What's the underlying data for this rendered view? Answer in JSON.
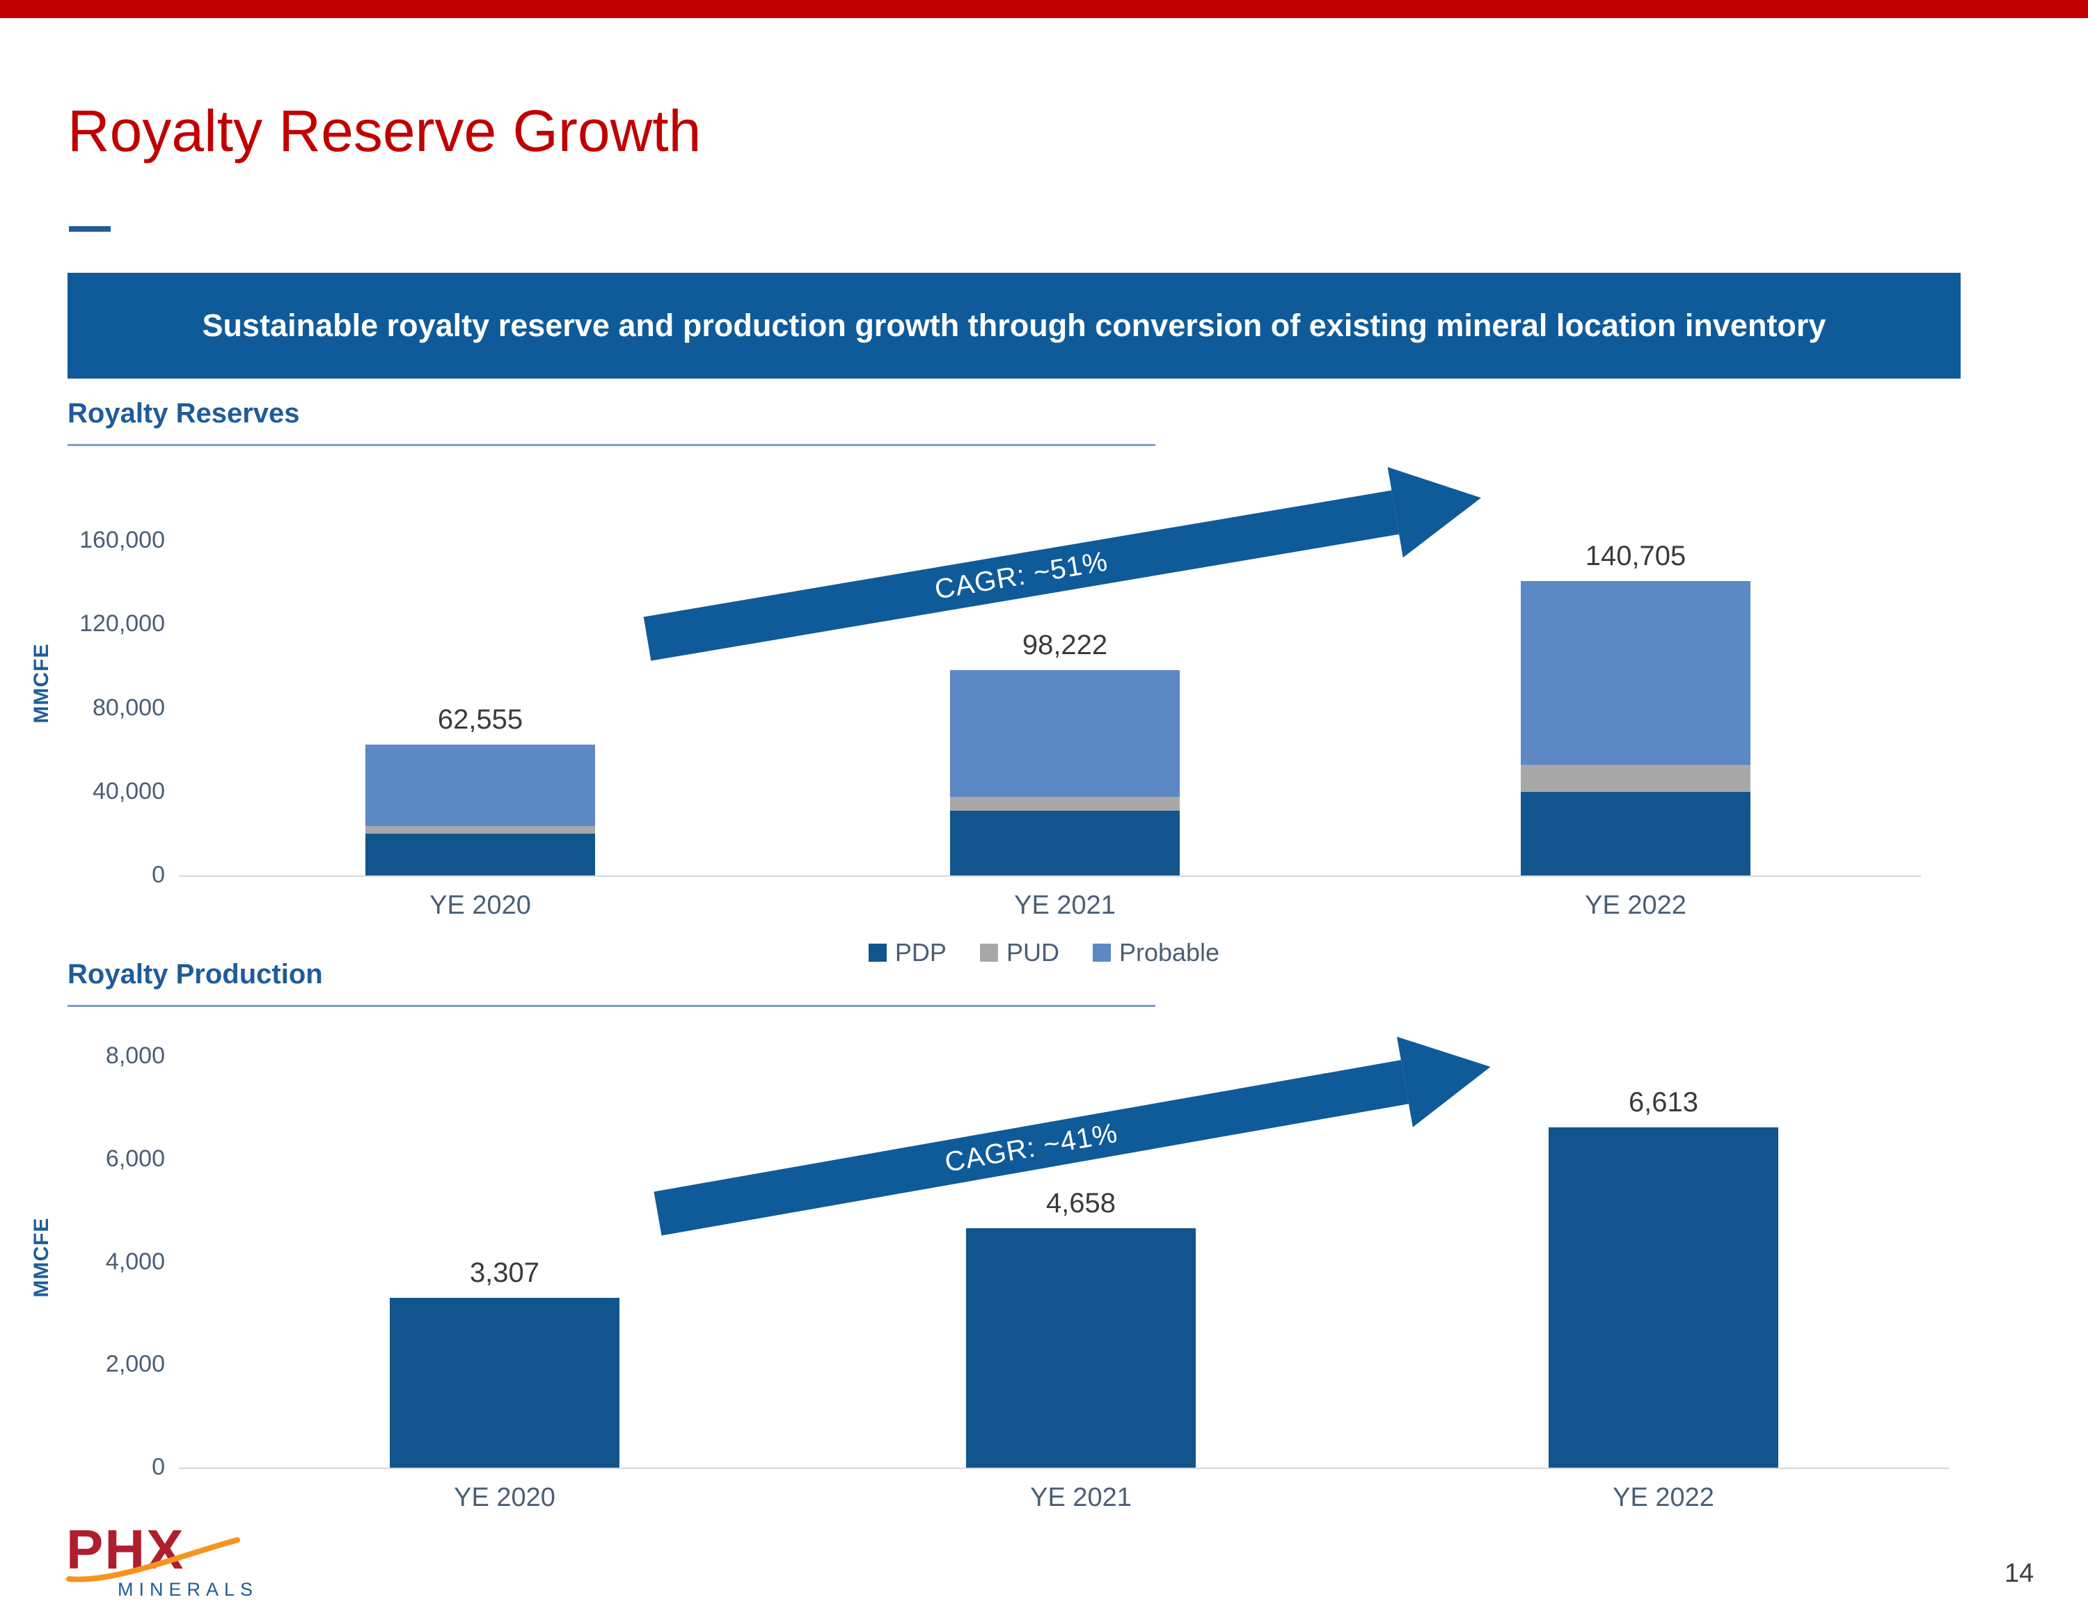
{
  "title": "Royalty Reserve Growth",
  "banner": "Sustainable royalty reserve and production growth through conversion of existing mineral location inventory",
  "page_number": "14",
  "logo": {
    "name": "PHX",
    "sub": "MINERALS"
  },
  "colors": {
    "brand_red": "#C00000",
    "banner_blue": "#0F5B99",
    "pdp_blue": "#11558C",
    "probable_blue": "#5C88C5",
    "pud_gray": "#A8A8A8"
  },
  "chart_data": [
    {
      "type": "bar",
      "stacked": true,
      "title": "Royalty Reserves",
      "ylabel": "MMCFE",
      "categories": [
        "YE 2020",
        "YE 2021",
        "YE 2022"
      ],
      "series": [
        {
          "name": "PDP",
          "color": "#11558C",
          "values": [
            20000,
            31000,
            40000
          ]
        },
        {
          "name": "PUD",
          "color": "#A8A8A8",
          "values": [
            3500,
            6500,
            13000
          ]
        },
        {
          "name": "Probable",
          "color": "#5C88C5",
          "values": [
            39055,
            60722,
            87705
          ]
        }
      ],
      "totals": [
        62555,
        98222,
        140705
      ],
      "total_labels": [
        "62,555",
        "98,222",
        "140,705"
      ],
      "ylim": [
        0,
        160000
      ],
      "yticks": [
        0,
        40000,
        80000,
        120000,
        160000
      ],
      "ytick_labels": [
        "0",
        "40,000",
        "80,000",
        "120,000",
        "160,000"
      ],
      "annotation": "CAGR: ~51%",
      "legend": [
        "PDP",
        "PUD",
        "Probable"
      ],
      "legend_position": "bottom",
      "grid": false
    },
    {
      "type": "bar",
      "stacked": false,
      "title": "Royalty Production",
      "ylabel": "MMCFE",
      "categories": [
        "YE 2020",
        "YE 2021",
        "YE 2022"
      ],
      "values": [
        3307,
        4658,
        6613
      ],
      "value_labels": [
        "3,307",
        "4,658",
        "6,613"
      ],
      "color": "#11558C",
      "ylim": [
        0,
        8000
      ],
      "yticks": [
        0,
        2000,
        4000,
        6000,
        8000
      ],
      "ytick_labels": [
        "0",
        "2,000",
        "4,000",
        "6,000",
        "8,000"
      ],
      "annotation": "CAGR: ~41%",
      "grid": false
    }
  ]
}
